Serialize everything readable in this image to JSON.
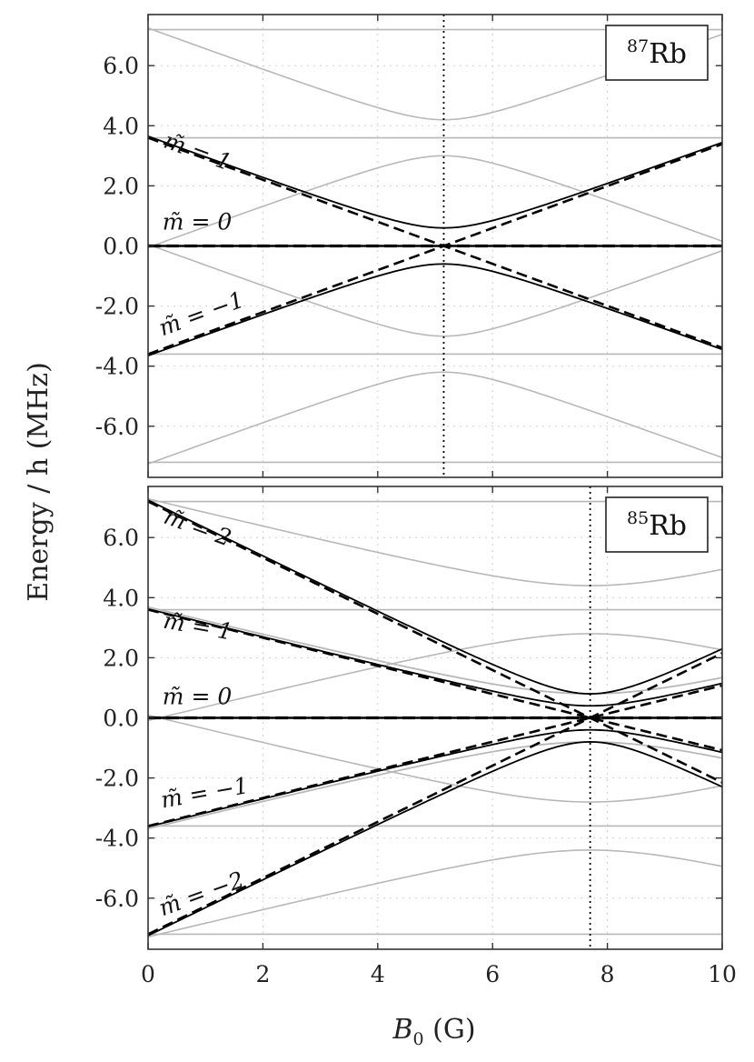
{
  "chart_data": [
    {
      "type": "line",
      "element": "87Rb",
      "legend": {
        "sup": "87",
        "name": "Rb",
        "position": "top-right"
      },
      "xlim": [
        0,
        10
      ],
      "ylim": [
        -7.7,
        7.7
      ],
      "xticks": [
        0,
        2,
        4,
        6,
        8,
        10
      ],
      "yticks": [
        -6.0,
        -4.0,
        -2.0,
        0.0,
        2.0,
        4.0,
        6.0
      ],
      "ytick_labels": [
        "-6.0",
        "-4.0",
        "-2.0",
        "0.0",
        "2.0",
        "4.0",
        "6.0"
      ],
      "grid": true,
      "resonance_B": 5.15,
      "levels_gray": {
        "flat": [
          7.2,
          3.6,
          0.0,
          -3.6,
          -7.2
        ],
        "hyperbolic": [
          {
            "center": 5.15,
            "E0": 7.2,
            "gap": 0.6,
            "sign": -1
          },
          {
            "center": 5.15,
            "E0": 7.2,
            "gap": 0.6,
            "sign": 1
          },
          {
            "center": 5.15,
            "E0": 3.6,
            "gap": 0.6,
            "sign": -1
          },
          {
            "center": 5.15,
            "E0": 3.6,
            "gap": 0.6,
            "sign": 1
          },
          {
            "center": 5.15,
            "E0": -3.6,
            "gap": 0.6,
            "sign": -1
          },
          {
            "center": 5.15,
            "E0": -3.6,
            "gap": 0.6,
            "sign": 1
          },
          {
            "center": 5.15,
            "E0": -7.2,
            "gap": 0.6,
            "sign": -1
          },
          {
            "center": 5.15,
            "E0": -7.2,
            "gap": 0.6,
            "sign": 1
          }
        ]
      },
      "levels_black": [
        {
          "m": 1,
          "E0": 3.6,
          "gap": 0.6,
          "offset": 0
        },
        {
          "m": 0,
          "E0": 0.0,
          "gap": 0,
          "offset": 0
        },
        {
          "m": -1,
          "E0": -3.6,
          "gap": 0.6,
          "offset": 0
        }
      ],
      "curve_labels": [
        {
          "text": "m̃ = 1",
          "x": 0.25,
          "y": 3.3,
          "angle": 20
        },
        {
          "text": "m̃ = 0",
          "x": 0.25,
          "y": 0.55,
          "angle": 0
        },
        {
          "text": "m̃ = −1",
          "x": 0.25,
          "y": -3.0,
          "angle": -20
        }
      ]
    },
    {
      "type": "line",
      "element": "85Rb",
      "legend": {
        "sup": "85",
        "name": "Rb",
        "position": "top-right"
      },
      "xlim": [
        0,
        10
      ],
      "ylim": [
        -7.7,
        7.7
      ],
      "xticks": [
        0,
        2,
        4,
        6,
        8,
        10
      ],
      "xtick_labels": [
        "0",
        "2",
        "4",
        "6",
        "8",
        "10"
      ],
      "yticks": [
        -6.0,
        -4.0,
        -2.0,
        0.0,
        2.0,
        4.0,
        6.0
      ],
      "ytick_labels": [
        "-6.0",
        "-4.0",
        "-2.0",
        "0.0",
        "2.0",
        "4.0",
        "6.0"
      ],
      "grid": true,
      "resonance_B": 7.7,
      "levels_gray": {
        "flat": [
          7.2,
          3.6,
          -3.6,
          -7.2
        ],
        "hyperbolic": [
          {
            "center": 7.7,
            "E0": 7.2,
            "gap": 0.8,
            "sign": -1
          },
          {
            "center": 7.7,
            "E0": 7.2,
            "gap": 0.8,
            "sign": 1
          },
          {
            "center": 7.7,
            "E0": 3.6,
            "gap": 0.8,
            "sign": -1
          },
          {
            "center": 7.7,
            "E0": 3.6,
            "gap": 0.8,
            "sign": 1
          },
          {
            "center": 7.7,
            "E0": -3.6,
            "gap": 0.8,
            "sign": -1
          },
          {
            "center": 7.7,
            "E0": -3.6,
            "gap": 0.8,
            "sign": 1
          },
          {
            "center": 7.7,
            "E0": -7.2,
            "gap": 0.8,
            "sign": -1
          },
          {
            "center": 7.7,
            "E0": -7.2,
            "gap": 0.8,
            "sign": 1
          }
        ]
      },
      "levels_black": [
        {
          "m": 2,
          "E0": 7.2,
          "gap": 0.8
        },
        {
          "m": 1,
          "E0": 3.6,
          "gap": 0.4
        },
        {
          "m": 0,
          "E0": 0.0,
          "gap": 0
        },
        {
          "m": -1,
          "E0": -3.6,
          "gap": 0.4
        },
        {
          "m": -2,
          "E0": -7.2,
          "gap": 0.8
        }
      ],
      "curve_labels": [
        {
          "text": "m̃ = 2",
          "x": 0.25,
          "y": 6.5,
          "angle": 20
        },
        {
          "text": "m̃ = 1",
          "x": 0.25,
          "y": 3.0,
          "angle": 10
        },
        {
          "text": "m̃ = 0",
          "x": 0.25,
          "y": 0.45,
          "angle": 0
        },
        {
          "text": "m̃ = −1",
          "x": 0.25,
          "y": -3.0,
          "angle": -10
        },
        {
          "text": "m̃ = −2",
          "x": 0.25,
          "y": -6.6,
          "angle": -20
        }
      ]
    }
  ],
  "axes": {
    "ylabel": "Energy / h (MHz)",
    "xlabel_main": "B",
    "xlabel_sub": "0",
    "xlabel_unit": " (G)"
  }
}
